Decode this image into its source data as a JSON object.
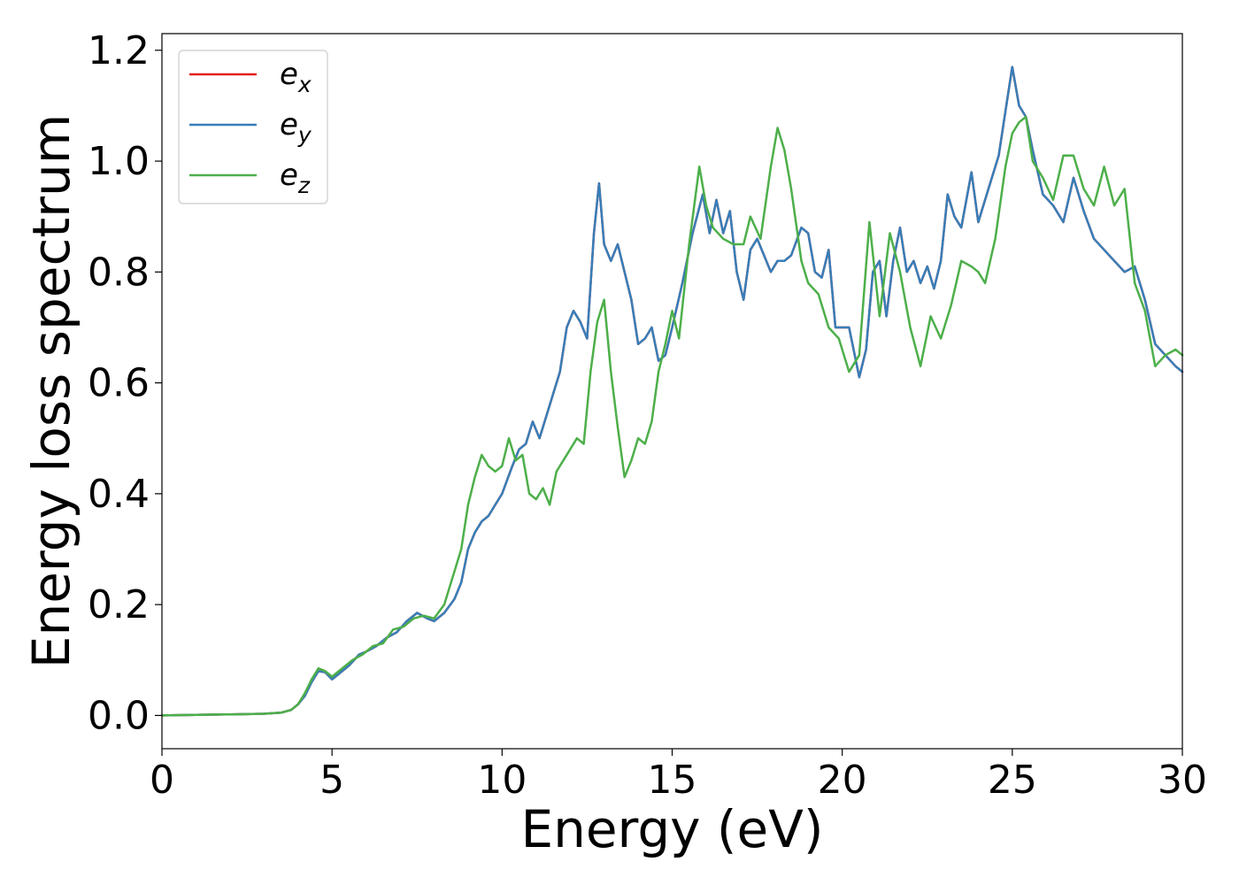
{
  "chart_data": {
    "type": "line",
    "title": "",
    "xlabel": "Energy (eV)",
    "ylabel": "Energy loss spectrum",
    "xlim": [
      0,
      30
    ],
    "ylim": [
      -0.06,
      1.23
    ],
    "xticks": [
      0,
      5,
      10,
      15,
      20,
      25,
      30
    ],
    "yticks": [
      0.0,
      0.2,
      0.4,
      0.6,
      0.8,
      1.0,
      1.2
    ],
    "xtick_labels": [
      "0",
      "5",
      "10",
      "15",
      "20",
      "25",
      "30"
    ],
    "ytick_labels": [
      "0.0",
      "0.2",
      "0.4",
      "0.6",
      "0.8",
      "1.0",
      "1.2"
    ],
    "grid": false,
    "legend_position": "top-left",
    "series": [
      {
        "name": "e_x",
        "label_base": "e",
        "label_sub": "x",
        "color": "#e41a1c",
        "x": [
          0,
          1,
          2,
          3,
          3.5,
          3.8,
          4.0,
          4.2,
          4.4,
          4.6,
          4.8,
          5.0,
          5.2,
          5.5,
          5.8,
          6.0,
          6.3,
          6.6,
          6.9,
          7.2,
          7.5,
          7.8,
          8.0,
          8.3,
          8.6,
          8.8,
          9.0,
          9.2,
          9.4,
          9.6,
          9.8,
          10.0,
          10.3,
          10.5,
          10.7,
          10.9,
          11.1,
          11.3,
          11.5,
          11.7,
          11.9,
          12.1,
          12.3,
          12.5,
          12.7,
          12.85,
          13.0,
          13.2,
          13.4,
          13.6,
          13.8,
          14.0,
          14.2,
          14.4,
          14.6,
          14.8,
          15.0,
          15.3,
          15.6,
          15.9,
          16.1,
          16.3,
          16.5,
          16.7,
          16.9,
          17.1,
          17.3,
          17.5,
          17.7,
          17.9,
          18.1,
          18.3,
          18.5,
          18.8,
          19.0,
          19.2,
          19.4,
          19.6,
          19.8,
          20.0,
          20.2,
          20.5,
          20.7,
          20.9,
          21.1,
          21.3,
          21.5,
          21.7,
          21.9,
          22.1,
          22.3,
          22.5,
          22.7,
          22.9,
          23.1,
          23.3,
          23.5,
          23.8,
          24.0,
          24.3,
          24.6,
          24.8,
          25.0,
          25.2,
          25.4,
          25.6,
          25.9,
          26.2,
          26.5,
          26.8,
          27.1,
          27.4,
          27.7,
          28.0,
          28.3,
          28.6,
          28.9,
          29.2,
          29.5,
          29.8,
          30.0
        ],
        "values": [
          0.0,
          0.001,
          0.002,
          0.003,
          0.005,
          0.01,
          0.02,
          0.035,
          0.06,
          0.08,
          0.078,
          0.065,
          0.075,
          0.09,
          0.11,
          0.115,
          0.125,
          0.14,
          0.15,
          0.17,
          0.185,
          0.175,
          0.17,
          0.185,
          0.21,
          0.24,
          0.3,
          0.33,
          0.35,
          0.36,
          0.38,
          0.4,
          0.45,
          0.48,
          0.49,
          0.53,
          0.5,
          0.54,
          0.58,
          0.62,
          0.7,
          0.73,
          0.71,
          0.68,
          0.87,
          0.96,
          0.85,
          0.82,
          0.85,
          0.8,
          0.75,
          0.67,
          0.68,
          0.7,
          0.64,
          0.65,
          0.7,
          0.78,
          0.87,
          0.94,
          0.87,
          0.93,
          0.87,
          0.91,
          0.8,
          0.75,
          0.84,
          0.86,
          0.83,
          0.8,
          0.82,
          0.82,
          0.83,
          0.88,
          0.87,
          0.8,
          0.79,
          0.84,
          0.7,
          0.7,
          0.7,
          0.61,
          0.66,
          0.8,
          0.82,
          0.72,
          0.82,
          0.88,
          0.8,
          0.82,
          0.78,
          0.81,
          0.77,
          0.82,
          0.94,
          0.9,
          0.88,
          0.98,
          0.89,
          0.95,
          1.01,
          1.09,
          1.17,
          1.1,
          1.08,
          1.02,
          0.94,
          0.92,
          0.89,
          0.97,
          0.91,
          0.86,
          0.84,
          0.82,
          0.8,
          0.81,
          0.75,
          0.67,
          0.65,
          0.63,
          0.62
        ],
        "line_width": 2.5
      },
      {
        "name": "e_y",
        "label_base": "e",
        "label_sub": "y",
        "color": "#377eb8",
        "x": [
          0,
          1,
          2,
          3,
          3.5,
          3.8,
          4.0,
          4.2,
          4.4,
          4.6,
          4.8,
          5.0,
          5.2,
          5.5,
          5.8,
          6.0,
          6.3,
          6.6,
          6.9,
          7.2,
          7.5,
          7.8,
          8.0,
          8.3,
          8.6,
          8.8,
          9.0,
          9.2,
          9.4,
          9.6,
          9.8,
          10.0,
          10.3,
          10.5,
          10.7,
          10.9,
          11.1,
          11.3,
          11.5,
          11.7,
          11.9,
          12.1,
          12.3,
          12.5,
          12.7,
          12.85,
          13.0,
          13.2,
          13.4,
          13.6,
          13.8,
          14.0,
          14.2,
          14.4,
          14.6,
          14.8,
          15.0,
          15.3,
          15.6,
          15.9,
          16.1,
          16.3,
          16.5,
          16.7,
          16.9,
          17.1,
          17.3,
          17.5,
          17.7,
          17.9,
          18.1,
          18.3,
          18.5,
          18.8,
          19.0,
          19.2,
          19.4,
          19.6,
          19.8,
          20.0,
          20.2,
          20.5,
          20.7,
          20.9,
          21.1,
          21.3,
          21.5,
          21.7,
          21.9,
          22.1,
          22.3,
          22.5,
          22.7,
          22.9,
          23.1,
          23.3,
          23.5,
          23.8,
          24.0,
          24.3,
          24.6,
          24.8,
          25.0,
          25.2,
          25.4,
          25.6,
          25.9,
          26.2,
          26.5,
          26.8,
          27.1,
          27.4,
          27.7,
          28.0,
          28.3,
          28.6,
          28.9,
          29.2,
          29.5,
          29.8,
          30.0
        ],
        "values": [
          0.0,
          0.001,
          0.002,
          0.003,
          0.005,
          0.01,
          0.02,
          0.035,
          0.06,
          0.08,
          0.078,
          0.065,
          0.075,
          0.09,
          0.11,
          0.115,
          0.125,
          0.14,
          0.15,
          0.17,
          0.185,
          0.175,
          0.17,
          0.185,
          0.21,
          0.24,
          0.3,
          0.33,
          0.35,
          0.36,
          0.38,
          0.4,
          0.45,
          0.48,
          0.49,
          0.53,
          0.5,
          0.54,
          0.58,
          0.62,
          0.7,
          0.73,
          0.71,
          0.68,
          0.87,
          0.96,
          0.85,
          0.82,
          0.85,
          0.8,
          0.75,
          0.67,
          0.68,
          0.7,
          0.64,
          0.65,
          0.7,
          0.78,
          0.87,
          0.94,
          0.87,
          0.93,
          0.87,
          0.91,
          0.8,
          0.75,
          0.84,
          0.86,
          0.83,
          0.8,
          0.82,
          0.82,
          0.83,
          0.88,
          0.87,
          0.8,
          0.79,
          0.84,
          0.7,
          0.7,
          0.7,
          0.61,
          0.66,
          0.8,
          0.82,
          0.72,
          0.82,
          0.88,
          0.8,
          0.82,
          0.78,
          0.81,
          0.77,
          0.82,
          0.94,
          0.9,
          0.88,
          0.98,
          0.89,
          0.95,
          1.01,
          1.09,
          1.17,
          1.1,
          1.08,
          1.02,
          0.94,
          0.92,
          0.89,
          0.97,
          0.91,
          0.86,
          0.84,
          0.82,
          0.8,
          0.81,
          0.75,
          0.67,
          0.65,
          0.63,
          0.62
        ],
        "line_width": 2.5
      },
      {
        "name": "e_z",
        "label_base": "e",
        "label_sub": "z",
        "color": "#4daf4a",
        "x": [
          0,
          1,
          2,
          3,
          3.5,
          3.8,
          4.0,
          4.2,
          4.4,
          4.6,
          4.8,
          5.0,
          5.3,
          5.6,
          5.9,
          6.2,
          6.5,
          6.8,
          7.1,
          7.4,
          7.7,
          8.0,
          8.3,
          8.6,
          8.8,
          9.0,
          9.2,
          9.4,
          9.6,
          9.8,
          10.0,
          10.2,
          10.4,
          10.6,
          10.8,
          11.0,
          11.2,
          11.4,
          11.6,
          11.8,
          12.0,
          12.2,
          12.4,
          12.6,
          12.8,
          13.0,
          13.2,
          13.4,
          13.6,
          13.8,
          14.0,
          14.2,
          14.4,
          14.6,
          14.8,
          15.0,
          15.2,
          15.5,
          15.8,
          16.0,
          16.2,
          16.5,
          16.8,
          17.1,
          17.3,
          17.6,
          17.9,
          18.1,
          18.3,
          18.5,
          18.8,
          19.0,
          19.3,
          19.6,
          19.9,
          20.2,
          20.5,
          20.8,
          21.1,
          21.4,
          21.7,
          22.0,
          22.3,
          22.6,
          22.9,
          23.2,
          23.5,
          23.8,
          24.0,
          24.2,
          24.5,
          24.8,
          25.0,
          25.2,
          25.4,
          25.6,
          25.9,
          26.2,
          26.5,
          26.8,
          27.1,
          27.4,
          27.7,
          28.0,
          28.3,
          28.6,
          28.9,
          29.2,
          29.5,
          29.8,
          30.0
        ],
        "values": [
          0.0,
          0.001,
          0.002,
          0.003,
          0.005,
          0.01,
          0.02,
          0.04,
          0.065,
          0.085,
          0.08,
          0.07,
          0.085,
          0.1,
          0.11,
          0.125,
          0.13,
          0.155,
          0.16,
          0.175,
          0.18,
          0.175,
          0.2,
          0.26,
          0.3,
          0.38,
          0.43,
          0.47,
          0.45,
          0.44,
          0.45,
          0.5,
          0.46,
          0.47,
          0.4,
          0.39,
          0.41,
          0.38,
          0.44,
          0.46,
          0.48,
          0.5,
          0.49,
          0.62,
          0.71,
          0.75,
          0.62,
          0.52,
          0.43,
          0.46,
          0.5,
          0.49,
          0.53,
          0.62,
          0.67,
          0.73,
          0.68,
          0.85,
          0.99,
          0.92,
          0.88,
          0.86,
          0.85,
          0.85,
          0.9,
          0.86,
          0.99,
          1.06,
          1.02,
          0.95,
          0.82,
          0.78,
          0.76,
          0.7,
          0.68,
          0.62,
          0.65,
          0.89,
          0.72,
          0.87,
          0.8,
          0.7,
          0.63,
          0.72,
          0.68,
          0.74,
          0.82,
          0.81,
          0.8,
          0.78,
          0.86,
          0.99,
          1.05,
          1.07,
          1.08,
          1.0,
          0.97,
          0.93,
          1.01,
          1.01,
          0.95,
          0.92,
          0.99,
          0.92,
          0.95,
          0.78,
          0.73,
          0.63,
          0.65,
          0.66,
          0.65
        ],
        "line_width": 2.5
      }
    ]
  }
}
